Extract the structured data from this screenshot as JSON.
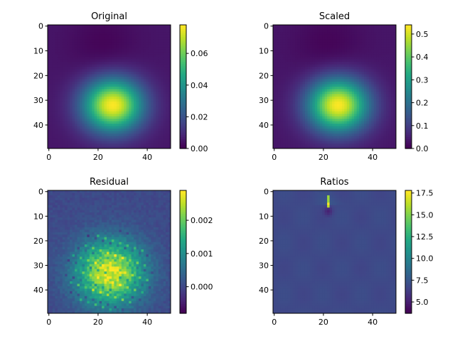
{
  "chart_data": [
    {
      "type": "heatmap",
      "title": "Original",
      "colormap": "viridis",
      "grid_shape": [
        50,
        50
      ],
      "extent": [
        -0.5,
        49.5,
        49.5,
        -0.5
      ],
      "x_ticks": [
        0,
        20,
        40
      ],
      "x_tick_labels": [
        "0",
        "20",
        "40"
      ],
      "y_ticks": [
        0,
        10,
        20,
        30,
        40
      ],
      "y_tick_labels": [
        "0",
        "10",
        "20",
        "30",
        "40"
      ],
      "value_range": [
        0.0,
        0.078
      ],
      "colorbar_ticks": [
        0.0,
        0.02,
        0.04,
        0.06
      ],
      "colorbar_tick_labels": [
        "0.00",
        "0.02",
        "0.04",
        "0.06"
      ],
      "peak_center": [
        26,
        32
      ],
      "minimum_center": [
        22,
        8
      ]
    },
    {
      "type": "heatmap",
      "title": "Scaled",
      "colormap": "viridis",
      "grid_shape": [
        50,
        50
      ],
      "extent": [
        -0.5,
        49.5,
        49.5,
        -0.5
      ],
      "x_ticks": [
        0,
        20,
        40
      ],
      "x_tick_labels": [
        "0",
        "20",
        "40"
      ],
      "y_ticks": [
        0,
        10,
        20,
        30,
        40
      ],
      "y_tick_labels": [
        "0",
        "10",
        "20",
        "30",
        "40"
      ],
      "value_range": [
        0.0,
        0.54
      ],
      "colorbar_ticks": [
        0.0,
        0.1,
        0.2,
        0.3,
        0.4,
        0.5
      ],
      "colorbar_tick_labels": [
        "0.0",
        "0.1",
        "0.2",
        "0.3",
        "0.4",
        "0.5"
      ],
      "peak_center": [
        26,
        32
      ],
      "minimum_center": [
        22,
        8
      ]
    },
    {
      "type": "heatmap",
      "title": "Residual",
      "colormap": "viridis",
      "grid_shape": [
        50,
        50
      ],
      "extent": [
        -0.5,
        49.5,
        49.5,
        -0.5
      ],
      "x_ticks": [
        0,
        20,
        40
      ],
      "x_tick_labels": [
        "0",
        "20",
        "40"
      ],
      "y_ticks": [
        0,
        10,
        20,
        30,
        40
      ],
      "y_tick_labels": [
        "0",
        "10",
        "20",
        "30",
        "40"
      ],
      "value_range": [
        -0.0008,
        0.0029
      ],
      "colorbar_ticks": [
        0.0,
        0.001,
        0.002
      ],
      "colorbar_tick_labels": [
        "0.000",
        "0.001",
        "0.002"
      ],
      "peak_center": [
        25,
        33
      ]
    },
    {
      "type": "heatmap",
      "title": "Ratios",
      "colormap": "viridis",
      "grid_shape": [
        50,
        50
      ],
      "extent": [
        -0.5,
        49.5,
        49.5,
        -0.5
      ],
      "x_ticks": [
        0,
        20,
        40
      ],
      "x_tick_labels": [
        "0",
        "20",
        "40"
      ],
      "y_ticks": [
        0,
        10,
        20,
        30,
        40
      ],
      "y_tick_labels": [
        "0",
        "10",
        "20",
        "30",
        "40"
      ],
      "value_range": [
        3.7,
        17.8
      ],
      "colorbar_ticks": [
        5.0,
        7.5,
        10.0,
        12.5,
        15.0,
        17.5
      ],
      "colorbar_tick_labels": [
        "5.0",
        "7.5",
        "10.0",
        "12.5",
        "15.0",
        "17.5"
      ],
      "background_value": 6.8,
      "spike_center": [
        22,
        5
      ]
    }
  ]
}
